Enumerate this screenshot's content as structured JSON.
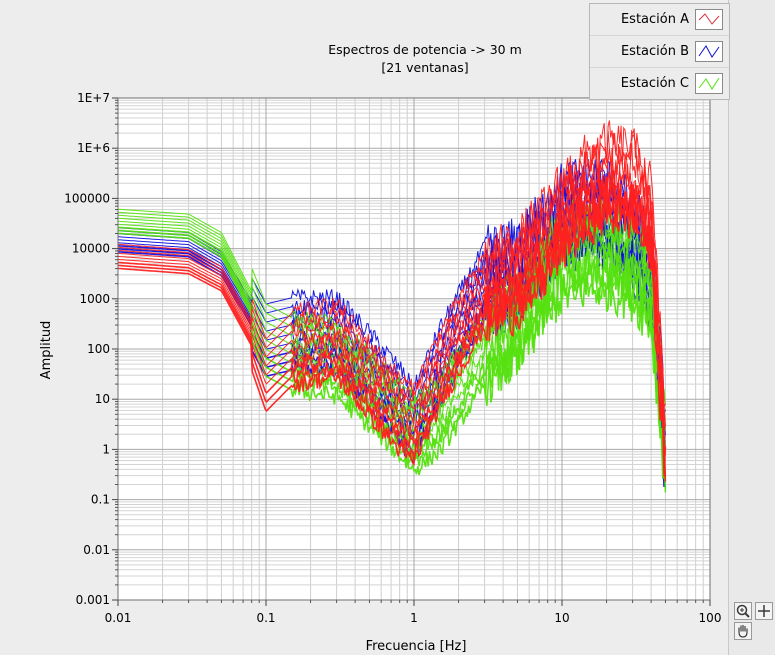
{
  "chart_data": {
    "type": "line",
    "title": "Espectros de potencia -> 30 m",
    "subtitle": "[21 ventanas]",
    "xlabel": "Frecuencia [Hz]",
    "ylabel": "Amplitud",
    "x_scale": "log",
    "y_scale": "log",
    "xlim": [
      0.01,
      100
    ],
    "ylim": [
      0.001,
      10000000
    ],
    "grid": true,
    "legend_position": "top-right",
    "x_ticks": [
      "0.01",
      "0.1",
      "1",
      "10",
      "100"
    ],
    "y_ticks": [
      "0.001",
      "0.01",
      "0.1",
      "1",
      "10",
      "100",
      "1000",
      "10000",
      "100000",
      "1E+6",
      "1E+7"
    ],
    "series": [
      {
        "name": "Estación A",
        "color": "#ff2020",
        "windows": 21,
        "x": [
          0.01,
          0.03,
          0.05,
          0.08,
          0.1,
          0.15,
          0.3,
          0.5,
          0.8,
          1,
          1.5,
          3,
          5,
          8,
          10,
          15,
          20,
          30,
          40,
          50
        ],
        "values": [
          7000,
          5500,
          2500,
          200,
          30,
          100,
          150,
          25,
          5,
          3,
          40,
          1500,
          3000,
          15000,
          50000,
          150000,
          250000,
          200000,
          40000,
          1
        ]
      },
      {
        "name": "Estación B",
        "color": "#1010e0",
        "windows": 21,
        "x": [
          0.01,
          0.03,
          0.05,
          0.08,
          0.1,
          0.15,
          0.3,
          0.5,
          0.8,
          1,
          1.5,
          3,
          5,
          8,
          10,
          15,
          20,
          30,
          40,
          50
        ],
        "values": [
          15000,
          12000,
          5000,
          500,
          150,
          200,
          200,
          40,
          8,
          3,
          50,
          2000,
          3000,
          15000,
          40000,
          60000,
          50000,
          15000,
          3000,
          1
        ]
      },
      {
        "name": "Estación C",
        "color": "#55e010",
        "windows": 21,
        "x": [
          0.01,
          0.03,
          0.05,
          0.08,
          0.1,
          0.15,
          0.3,
          0.5,
          0.8,
          1,
          1.5,
          3,
          5,
          8,
          10,
          15,
          20,
          30,
          40,
          50
        ],
        "values": [
          35000,
          28000,
          12000,
          800,
          150,
          80,
          60,
          15,
          4,
          2,
          5,
          100,
          300,
          3000,
          6000,
          8000,
          8000,
          5000,
          1500,
          1
        ]
      }
    ]
  },
  "toolbar": {
    "zoom_icon": "zoom-icon",
    "pan_icon": "hand-pan-icon",
    "crosshair_icon": "crosshair-icon"
  }
}
